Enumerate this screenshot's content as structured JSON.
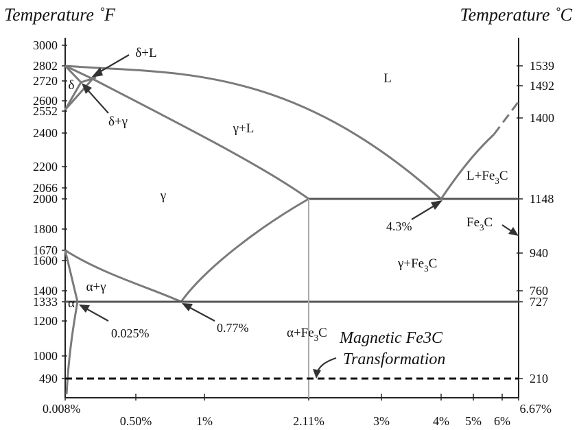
{
  "title_left": "Temperature ˚F",
  "title_right": "Temperature ˚C",
  "left_ticks": [
    {
      "label": "3000",
      "value": 3000
    },
    {
      "label": "2802",
      "value": 2802
    },
    {
      "label": "2720",
      "value": 2720
    },
    {
      "label": "2600",
      "value": 2600
    },
    {
      "label": "2552",
      "value": 2552
    },
    {
      "label": "2400",
      "value": 2400
    },
    {
      "label": "2200",
      "value": 2200
    },
    {
      "label": "2066",
      "value": 2066
    },
    {
      "label": "2000",
      "value": 2000
    },
    {
      "label": "1800",
      "value": 1800
    },
    {
      "label": "1670",
      "value": 1670
    },
    {
      "label": "1600",
      "value": 1600
    },
    {
      "label": "1400",
      "value": 1400
    },
    {
      "label": "1333",
      "value": 1333
    },
    {
      "label": "1200",
      "value": 1200
    },
    {
      "label": "1000",
      "value": 1000
    },
    {
      "label": "490",
      "value": 490
    }
  ],
  "right_ticks": [
    {
      "label": "1539",
      "value": 1539
    },
    {
      "label": "1492",
      "value": 1492
    },
    {
      "label": "1400",
      "value": 1400
    },
    {
      "label": "1148",
      "value": 1148
    },
    {
      "label": "940",
      "value": 940
    },
    {
      "label": "760",
      "value": 760
    },
    {
      "label": "727",
      "value": 727
    },
    {
      "label": "210",
      "value": 210
    }
  ],
  "bottom_ticks": [
    {
      "label": "0.008%",
      "value": 0.008
    },
    {
      "label": "0.50%",
      "value": 0.5
    },
    {
      "label": "1%",
      "value": 1
    },
    {
      "label": "2.11%",
      "value": 2.11
    },
    {
      "label": "3%",
      "value": 3
    },
    {
      "label": "4%",
      "value": 4
    },
    {
      "label": "5%",
      "value": 5
    },
    {
      "label": "6%",
      "value": 6
    },
    {
      "label": "6.67%",
      "value": 6.67
    }
  ],
  "regions": {
    "liquid": "L",
    "delta_liquid": "δ+L",
    "delta": "δ",
    "delta_gamma": "δ+γ",
    "gamma_liquid": "γ+L",
    "gamma": "γ",
    "alpha_gamma": "α+γ",
    "alpha": "α",
    "l_fe3c_main": "L+Fe",
    "l_fe3c_sub": "3",
    "l_fe3c_tail": "C",
    "fe3c_main": "Fe",
    "fe3c_sub": "3",
    "fe3c_tail": "C",
    "gamma_fe3c_main": "γ+Fe",
    "gamma_fe3c_sub": "3",
    "gamma_fe3c_tail": "C",
    "alpha_fe3c_main": "α+Fe",
    "alpha_fe3c_sub": "3",
    "alpha_fe3c_tail": "C"
  },
  "annotations": {
    "eutectic": "4.3%",
    "eutectoid": "0.77%",
    "alpha_solubility": "0.025%",
    "magnetic_line1": "Magnetic Fe3C",
    "magnetic_line2": "Transformation"
  },
  "colors": {
    "phase_lines": "#7a7a7a",
    "axis": "#222222",
    "background": "#ffffff"
  }
}
